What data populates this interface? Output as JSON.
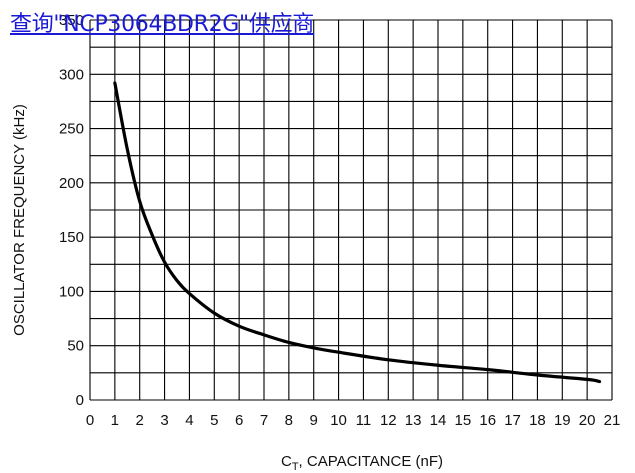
{
  "overlay_link": {
    "text": "查询\"NCP3064BDR2G\"供应商",
    "color": "#1a1ad6"
  },
  "chart_data": {
    "type": "line",
    "xlabel_main": "C",
    "xlabel_sub": "T",
    "xlabel_rest": ", CAPACITANCE (nF)",
    "ylabel": "OSCILLATOR FREQUENCY (kHz)",
    "xlim": [
      0,
      21
    ],
    "ylim": [
      0,
      350
    ],
    "x_ticks": [
      0,
      1,
      2,
      3,
      4,
      5,
      6,
      7,
      8,
      9,
      10,
      11,
      12,
      13,
      14,
      15,
      16,
      17,
      18,
      19,
      20,
      21
    ],
    "y_ticks": [
      0,
      50,
      100,
      150,
      200,
      250,
      300,
      350
    ],
    "minor_x_step": 1,
    "minor_y_step": 25,
    "grid": true,
    "line_color": "#000000",
    "series": [
      {
        "x": [
          1.0,
          1.5,
          2.0,
          2.5,
          3.0,
          3.5,
          4.0,
          5.0,
          6.0,
          7.0,
          8.0,
          9.0,
          10.0,
          12.0,
          14.0,
          16.0,
          18.0,
          20.0,
          20.5
        ],
        "y": [
          292,
          231,
          183,
          152,
          127,
          110,
          98,
          80,
          68,
          60,
          53,
          48,
          44,
          37,
          32,
          28,
          23,
          19,
          17
        ]
      }
    ]
  }
}
